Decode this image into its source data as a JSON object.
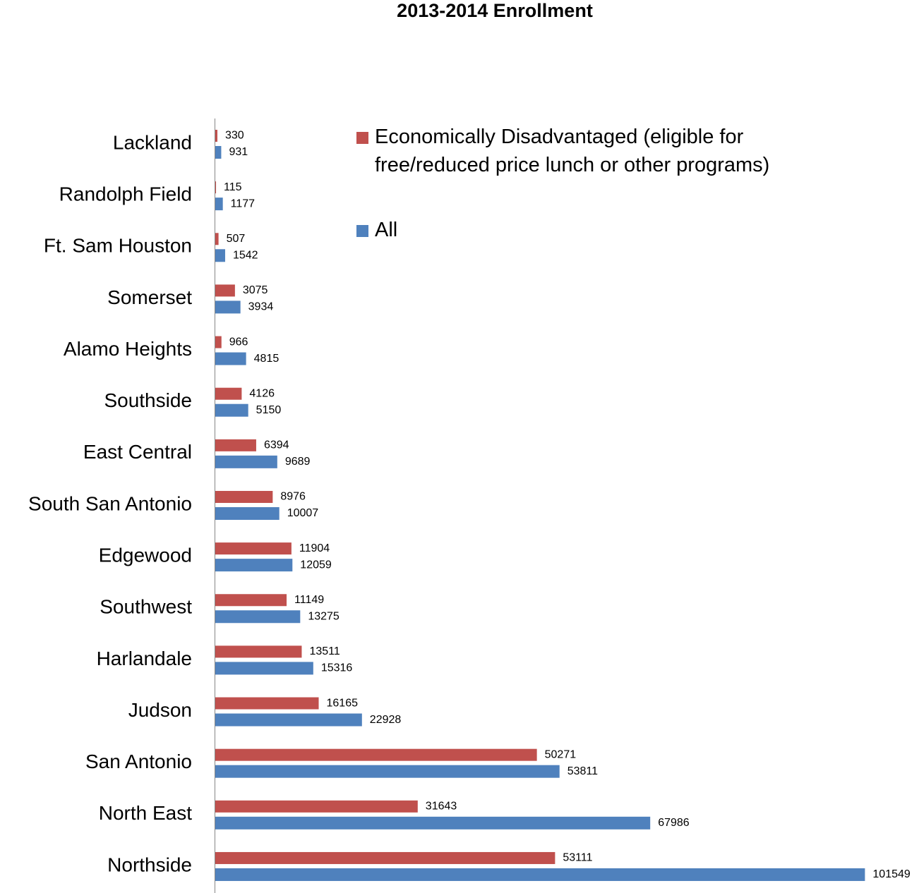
{
  "chart_data": {
    "type": "barh",
    "title": "2013-2014 Enrollment",
    "categories": [
      "Lackland",
      "Randolph Field",
      "Ft. Sam Houston",
      "Somerset",
      "Alamo Heights",
      "Southside",
      "East Central",
      "South San Antonio",
      "Edgewood",
      "Southwest",
      "Harlandale",
      "Judson",
      "San Antonio",
      "North East",
      "Northside"
    ],
    "series": [
      {
        "name": "Economically Disadvantaged (eligible for free/reduced price lunch or other programs)",
        "color": "#c0504d",
        "values": [
          330,
          115,
          507,
          3075,
          966,
          4126,
          6394,
          8976,
          11904,
          11149,
          13511,
          16165,
          50271,
          31643,
          53111
        ]
      },
      {
        "name": "All",
        "color": "#4f81bd",
        "values": [
          931,
          1177,
          1542,
          3934,
          4815,
          5150,
          9689,
          10007,
          12059,
          13275,
          15316,
          22928,
          53811,
          67986,
          101549
        ]
      }
    ],
    "xlim": [
      0,
      110000
    ],
    "legend": "upper-right",
    "grid": false
  }
}
